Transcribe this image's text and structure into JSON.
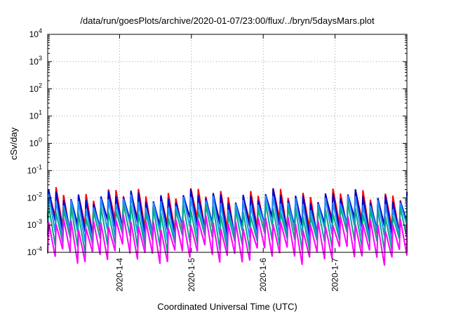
{
  "chart_data": {
    "type": "line",
    "title": "/data/run/goesPlots/archive/2020-01-07/23:00/flux/../bryn/5daysMars.plot",
    "xlabel": "Coordinated Universal Time (UTC)",
    "ylabel": "cSv/day",
    "yscale": "log",
    "ylim": [
      0.0001,
      10000
    ],
    "xlim": [
      "2020-01-03 00:00",
      "2020-01-08 00:00"
    ],
    "grid": true,
    "x_ticks": [
      "2020-1-4",
      "2020-1-5",
      "2020-1-6",
      "2020-1-7"
    ],
    "y_ticks": [
      {
        "base": "10",
        "exp": "4"
      },
      {
        "base": "10",
        "exp": "3"
      },
      {
        "base": "10",
        "exp": "2"
      },
      {
        "base": "10",
        "exp": "1"
      },
      {
        "base": "10",
        "exp": "0"
      },
      {
        "base": "10",
        "exp": "-1"
      },
      {
        "base": "10",
        "exp": "-2"
      },
      {
        "base": "10",
        "exp": "-3"
      },
      {
        "base": "10",
        "exp": "-4"
      }
    ],
    "pattern": {
      "cycle_hours": 2.5,
      "description": "sawtooth per cycle: sharp rise to peak then decay to trough"
    },
    "series": [
      {
        "color": "#ff0000",
        "peak": 0.013,
        "trough": 0.0009
      },
      {
        "color": "#0000cc",
        "peak": 0.011,
        "trough": 0.0008
      },
      {
        "color": "#1e90ff",
        "peak": 0.007,
        "trough": 0.0005
      },
      {
        "color": "#00aa88",
        "peak": 0.0035,
        "trough": 0.00022
      },
      {
        "color": "#ff00ff",
        "peak": 0.0012,
        "trough": 8e-05
      }
    ]
  }
}
